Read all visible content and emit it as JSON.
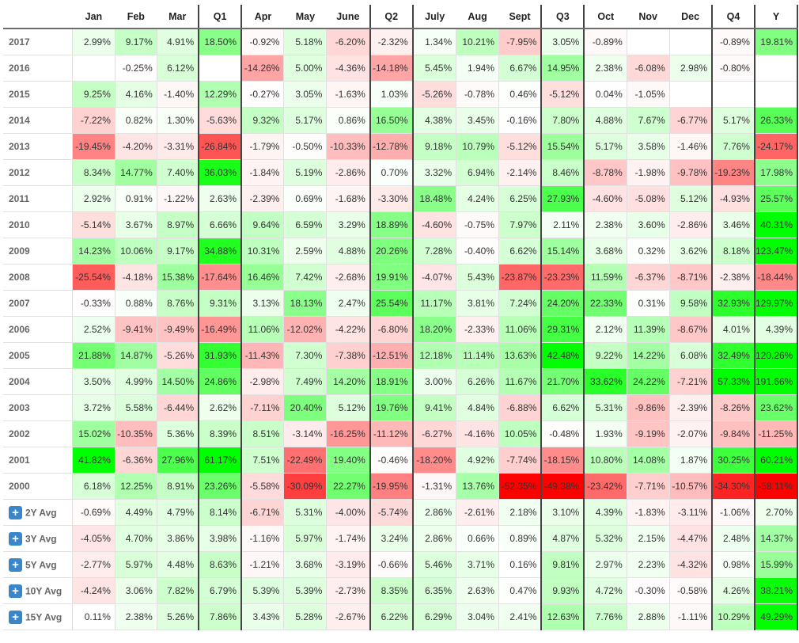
{
  "columns": [
    "",
    "Jan",
    "Feb",
    "Mar",
    "Q1",
    "Apr",
    "May",
    "June",
    "Q2",
    "July",
    "Aug",
    "Sept",
    "Q3",
    "Oct",
    "Nov",
    "Dec",
    "Q4",
    "Y"
  ],
  "colors": {
    "positive_max": "#00ff00",
    "negative_max": "#ff0000",
    "neutral": "#ffffff",
    "expand_button": "#3a86cb"
  },
  "years": [
    {
      "label": "2017",
      "values": [
        "2.99%",
        "9.17%",
        "4.91%",
        "18.50%",
        "-0.92%",
        "5.18%",
        "-6.20%",
        "-2.32%",
        "1.34%",
        "10.21%",
        "-7.95%",
        "3.05%",
        "-0.89%",
        "",
        "",
        "-0.89%",
        "19.81%"
      ]
    },
    {
      "label": "2016",
      "values": [
        "",
        "-0.25%",
        "6.12%",
        "",
        "-14.26%",
        "5.00%",
        "-4.36%",
        "-14.18%",
        "5.45%",
        "1.94%",
        "6.67%",
        "14.95%",
        "2.38%",
        "-6.08%",
        "2.98%",
        "-0.80%",
        ""
      ]
    },
    {
      "label": "2015",
      "values": [
        "9.25%",
        "4.16%",
        "-1.40%",
        "12.29%",
        "-0.27%",
        "3.05%",
        "-1.63%",
        "1.03%",
        "-5.26%",
        "-0.78%",
        "0.46%",
        "-5.12%",
        "0.04%",
        "-1.05%",
        "",
        "",
        ""
      ]
    },
    {
      "label": "2014",
      "values": [
        "-7.22%",
        "0.82%",
        "1.30%",
        "-5.63%",
        "9.32%",
        "5.17%",
        "0.86%",
        "16.50%",
        "4.38%",
        "3.45%",
        "-0.16%",
        "7.80%",
        "4.88%",
        "7.67%",
        "-6.77%",
        "5.17%",
        "26.33%"
      ]
    },
    {
      "label": "2013",
      "values": [
        "-19.45%",
        "-4.20%",
        "-3.31%",
        "-26.84%",
        "-1.79%",
        "-0.50%",
        "-10.33%",
        "-12.78%",
        "9.18%",
        "10.79%",
        "-5.12%",
        "15.54%",
        "5.17%",
        "3.58%",
        "-1.46%",
        "7.76%",
        "-24.17%"
      ]
    },
    {
      "label": "2012",
      "values": [
        "8.34%",
        "14.77%",
        "7.40%",
        "36.03%",
        "-1.84%",
        "5.19%",
        "-2.86%",
        "0.70%",
        "3.32%",
        "6.94%",
        "-2.14%",
        "8.46%",
        "-8.78%",
        "-1.98%",
        "-9.78%",
        "-19.23%",
        "17.98%"
      ]
    },
    {
      "label": "2011",
      "values": [
        "2.92%",
        "0.91%",
        "-1.22%",
        "2.63%",
        "-2.39%",
        "0.69%",
        "-1.68%",
        "-3.30%",
        "18.48%",
        "4.24%",
        "6.25%",
        "27.93%",
        "-4.60%",
        "-5.08%",
        "5.12%",
        "-4.93%",
        "25.57%"
      ]
    },
    {
      "label": "2010",
      "values": [
        "-5.14%",
        "3.67%",
        "8.97%",
        "6.66%",
        "9.64%",
        "6.59%",
        "3.29%",
        "18.89%",
        "-4.60%",
        "-0.75%",
        "7.97%",
        "2.11%",
        "2.38%",
        "3.60%",
        "-2.86%",
        "3.46%",
        "40.31%"
      ]
    },
    {
      "label": "2009",
      "values": [
        "14.23%",
        "10.06%",
        "9.17%",
        "34.88%",
        "10.31%",
        "2.59%",
        "4.88%",
        "20.26%",
        "7.28%",
        "-0.40%",
        "6.62%",
        "15.14%",
        "3.68%",
        "0.32%",
        "3.62%",
        "8.18%",
        "123.47%"
      ]
    },
    {
      "label": "2008",
      "values": [
        "-25.54%",
        "-4.18%",
        "15.38%",
        "-17.64%",
        "16.46%",
        "7.42%",
        "-2.68%",
        "19.91%",
        "-4.07%",
        "5.43%",
        "-23.87%",
        "-23.23%",
        "11.59%",
        "-6.37%",
        "-8.71%",
        "-2.38%",
        "-18.44%"
      ]
    },
    {
      "label": "2007",
      "values": [
        "-0.33%",
        "0.88%",
        "8.76%",
        "9.31%",
        "3.13%",
        "18.13%",
        "2.47%",
        "25.54%",
        "11.17%",
        "3.81%",
        "7.24%",
        "24.20%",
        "22.33%",
        "0.31%",
        "9.58%",
        "32.93%",
        "129.97%"
      ]
    },
    {
      "label": "2006",
      "values": [
        "2.52%",
        "-9.41%",
        "-9.49%",
        "-16.49%",
        "11.06%",
        "-12.02%",
        "-4.22%",
        "-6.80%",
        "18.20%",
        "-2.33%",
        "11.06%",
        "29.31%",
        "2.12%",
        "11.39%",
        "-8.67%",
        "4.01%",
        "4.39%"
      ]
    },
    {
      "label": "2005",
      "values": [
        "21.88%",
        "14.87%",
        "-5.26%",
        "31.93%",
        "-11.43%",
        "7.30%",
        "-7.38%",
        "-12.51%",
        "12.18%",
        "11.14%",
        "13.63%",
        "42.48%",
        "9.22%",
        "14.22%",
        "6.08%",
        "32.49%",
        "120.26%"
      ]
    },
    {
      "label": "2004",
      "values": [
        "3.50%",
        "4.99%",
        "14.50%",
        "24.86%",
        "-2.98%",
        "7.49%",
        "14.20%",
        "18.91%",
        "3.00%",
        "6.26%",
        "11.67%",
        "21.70%",
        "33.62%",
        "24.22%",
        "-7.21%",
        "57.33%",
        "191.66%"
      ]
    },
    {
      "label": "2003",
      "values": [
        "3.72%",
        "5.58%",
        "-6.44%",
        "2.62%",
        "-7.11%",
        "20.40%",
        "5.12%",
        "19.76%",
        "9.41%",
        "4.84%",
        "-6.88%",
        "6.62%",
        "5.31%",
        "-9.86%",
        "-2.39%",
        "-8.26%",
        "23.62%"
      ]
    },
    {
      "label": "2002",
      "values": [
        "15.02%",
        "-10.35%",
        "5.36%",
        "8.39%",
        "8.51%",
        "-3.14%",
        "-16.25%",
        "-11.12%",
        "-6.27%",
        "-4.16%",
        "10.05%",
        "-0.48%",
        "1.93%",
        "-9.19%",
        "-2.07%",
        "-9.84%",
        "-11.25%"
      ]
    },
    {
      "label": "2001",
      "values": [
        "41.82%",
        "-6.36%",
        "27.96%",
        "61.17%",
        "7.51%",
        "-22.49%",
        "19.40%",
        "-0.46%",
        "-18.20%",
        "4.92%",
        "-7.74%",
        "-18.15%",
        "10.80%",
        "14.08%",
        "1.87%",
        "30.25%",
        "60.21%"
      ]
    },
    {
      "label": "2000",
      "values": [
        "6.18%",
        "12.25%",
        "8.91%",
        "23.26%",
        "-5.58%",
        "-30.09%",
        "22.27%",
        "-19.95%",
        "-1.31%",
        "13.76%",
        "-52.35%",
        "-49.38%",
        "-23.42%",
        "-7.71%",
        "-10.57%",
        "-34.30%",
        "-58.11%"
      ]
    }
  ],
  "averages": [
    {
      "label": "2Y Avg",
      "values": [
        "-0.69%",
        "4.49%",
        "4.79%",
        "8.14%",
        "-6.71%",
        "5.31%",
        "-4.00%",
        "-5.74%",
        "2.86%",
        "-2.61%",
        "2.18%",
        "3.10%",
        "4.39%",
        "-1.83%",
        "-3.11%",
        "-1.06%",
        "2.70%"
      ]
    },
    {
      "label": "3Y Avg",
      "values": [
        "-4.05%",
        "4.70%",
        "3.86%",
        "3.98%",
        "-1.16%",
        "5.97%",
        "-1.74%",
        "3.24%",
        "2.86%",
        "0.66%",
        "0.89%",
        "4.87%",
        "5.32%",
        "2.15%",
        "-4.47%",
        "2.48%",
        "14.37%"
      ]
    },
    {
      "label": "5Y Avg",
      "values": [
        "-2.77%",
        "5.97%",
        "4.48%",
        "8.63%",
        "-1.21%",
        "3.68%",
        "-3.19%",
        "-0.66%",
        "5.46%",
        "3.71%",
        "0.16%",
        "9.81%",
        "2.97%",
        "2.23%",
        "-4.32%",
        "0.98%",
        "15.99%"
      ]
    },
    {
      "label": "10Y Avg",
      "values": [
        "-4.24%",
        "3.06%",
        "7.82%",
        "6.79%",
        "5.39%",
        "5.39%",
        "-2.73%",
        "8.35%",
        "6.35%",
        "2.63%",
        "0.47%",
        "9.93%",
        "4.72%",
        "-0.30%",
        "-0.58%",
        "4.26%",
        "38.21%"
      ]
    },
    {
      "label": "15Y Avg",
      "values": [
        "0.11%",
        "2.38%",
        "5.26%",
        "7.86%",
        "3.43%",
        "5.28%",
        "-2.67%",
        "6.22%",
        "6.29%",
        "3.04%",
        "2.41%",
        "12.63%",
        "7.76%",
        "2.88%",
        "-1.11%",
        "10.29%",
        "49.29%"
      ]
    }
  ],
  "expand_icon_glyph": "+"
}
